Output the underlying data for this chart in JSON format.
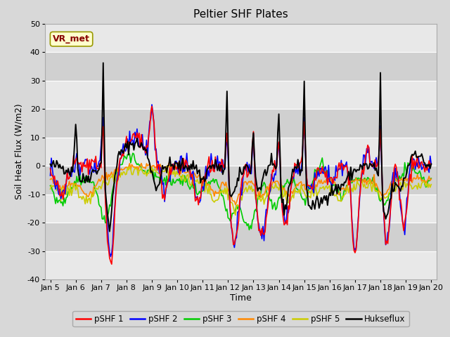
{
  "title": "Peltier SHF Plates",
  "xlabel": "Time",
  "ylabel": "Soil Heat Flux (W/m2)",
  "ylim": [
    -40,
    50
  ],
  "x_tick_labels": [
    "Jan 5",
    "Jan 6",
    "Jan 7",
    "Jan 8",
    "Jan 9",
    "Jan 10",
    "Jan 11",
    "Jan 12",
    "Jan 13",
    "Jan 14",
    "Jan 15",
    "Jan 16",
    "Jan 17",
    "Jan 18",
    "Jan 19",
    "Jan 20"
  ],
  "annotation_text": "VR_met",
  "annotation_bg": "#ffffcc",
  "annotation_edge": "#999900",
  "annotation_text_color": "#880000",
  "series_colors": [
    "#ff0000",
    "#0000ff",
    "#00cc00",
    "#ff8800",
    "#cccc00",
    "#000000"
  ],
  "series_labels": [
    "pSHF 1",
    "pSHF 2",
    "pSHF 3",
    "pSHF 4",
    "pSHF 5",
    "Hukseflux"
  ],
  "outer_bg": "#d8d8d8",
  "plot_bg_dark": "#d0d0d0",
  "plot_bg_light": "#e8e8e8",
  "title_fontsize": 11,
  "axis_label_fontsize": 9,
  "tick_fontsize": 8
}
